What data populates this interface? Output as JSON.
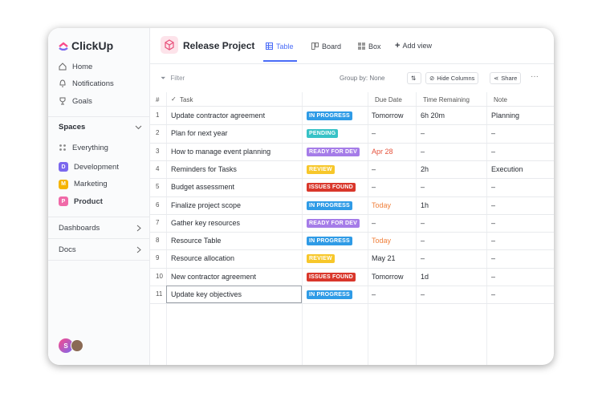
{
  "sidebar": {
    "logo": "ClickUp",
    "nav": [
      "Home",
      "Notifications",
      "Goals"
    ],
    "spaces_title": "Spaces",
    "everything": "Everything",
    "spaces": [
      {
        "badge": "D",
        "label": "Development",
        "color": "#7b68ee"
      },
      {
        "badge": "M",
        "label": "Marketing",
        "color": "#f5b400"
      },
      {
        "badge": "P",
        "label": "Product",
        "color": "#f06aa8"
      }
    ],
    "dashboards": "Dashboards",
    "docs": "Docs",
    "avatar": "S"
  },
  "header": {
    "project": "Release Project",
    "views": [
      "Table",
      "Board",
      "Box"
    ],
    "add_view": "Add view"
  },
  "toolbar": {
    "filter": "Filter",
    "group_by": "Group by: None",
    "hide_columns": "Hide Columns",
    "share": "Share"
  },
  "table": {
    "headers": {
      "number": "#",
      "task": "Task",
      "due_date": "Due Date",
      "time_remaining": "Time Remaining",
      "note": "Note"
    },
    "rows": [
      {
        "number": "1",
        "task": "Update contractor agreement",
        "status": {
          "label": "IN PROGRESS",
          "color": "#2f9be6"
        },
        "due": "Tomorrow",
        "time": "6h 20m",
        "note": "Planning"
      },
      {
        "number": "2",
        "task": "Plan for next year",
        "status": {
          "label": "PENDING",
          "color": "#37c2c6"
        },
        "due": "–",
        "time": "–",
        "note": "–"
      },
      {
        "number": "3",
        "task": "How to manage event planning",
        "status": {
          "label": "READY FOR DEV",
          "color": "#a57ce8"
        },
        "due": "Apr 28",
        "due_color": "#e5533d",
        "time": "–",
        "note": "–"
      },
      {
        "number": "4",
        "task": "Reminders for Tasks",
        "status": {
          "label": "REVIEW",
          "color": "#f7c72a"
        },
        "due": "–",
        "time": "2h",
        "note": "Execution"
      },
      {
        "number": "5",
        "task": "Budget assessment",
        "status": {
          "label": "ISSUES FOUND",
          "color": "#d9372b"
        },
        "due": "–",
        "time": "–",
        "note": "–"
      },
      {
        "number": "6",
        "task": "Finalize project scope",
        "status": {
          "label": "IN PROGRESS",
          "color": "#2f9be6"
        },
        "due": "Today",
        "due_color": "#f0803c",
        "time": "1h",
        "note": "–"
      },
      {
        "number": "7",
        "task": "Gather key resources",
        "status": {
          "label": "READY FOR DEV",
          "color": "#a57ce8"
        },
        "due": "–",
        "time": "–",
        "note": "–"
      },
      {
        "number": "8",
        "task": "Resource Table",
        "status": {
          "label": "IN PROGRESS",
          "color": "#2f9be6"
        },
        "due": "Today",
        "due_color": "#f0803c",
        "time": "–",
        "note": "–"
      },
      {
        "number": "9",
        "task": "Resource allocation",
        "status": {
          "label": "REVIEW",
          "color": "#f7c72a"
        },
        "due": "May 21",
        "time": "–",
        "note": "–"
      },
      {
        "number": "10",
        "task": "New contractor agreement",
        "status": {
          "label": "ISSUES FOUND",
          "color": "#d9372b"
        },
        "due": "Tomorrow",
        "time": "1d",
        "note": "–"
      },
      {
        "number": "11",
        "task": "Update key objectives",
        "status": {
          "label": "IN PROGRESS",
          "color": "#2f9be6"
        },
        "due": "–",
        "time": "–",
        "note": "–"
      }
    ]
  }
}
